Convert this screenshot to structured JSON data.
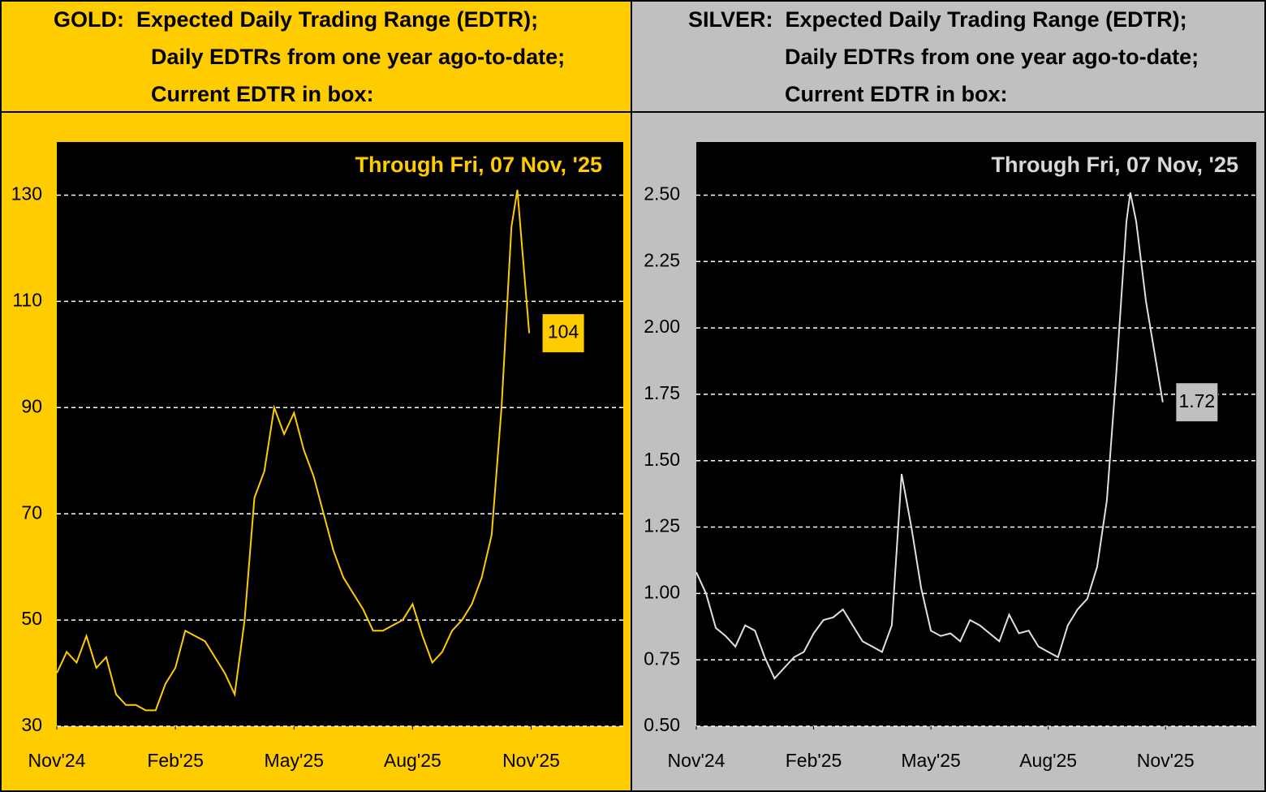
{
  "chart_data": [
    {
      "type": "line",
      "title": [
        "GOLD:  Expected Daily Trading Range (EDTR);",
        "Daily EDTRs from one year ago-to-date;",
        "Current EDTR in box:"
      ],
      "annotation": "Through Fri, 07 Nov, '25",
      "background": "#ffcc00",
      "color": "#ffcc00",
      "annotation_color": "#ffcc00",
      "x": [
        0,
        0.25,
        0.5,
        0.75,
        1,
        1.25,
        1.5,
        1.75,
        2,
        2.25,
        2.5,
        2.75,
        3,
        3.25,
        3.5,
        3.75,
        4,
        4.25,
        4.5,
        4.75,
        5,
        5.25,
        5.5,
        5.75,
        6,
        6.25,
        6.5,
        6.75,
        7,
        7.25,
        7.5,
        7.75,
        8,
        8.25,
        8.5,
        8.75,
        9,
        9.25,
        9.5,
        9.75,
        10,
        10.25,
        10.5,
        10.75,
        11,
        11.25,
        11.5,
        11.65,
        11.95
      ],
      "values": [
        40,
        44,
        42,
        47,
        41,
        43,
        36,
        34,
        34,
        33,
        33,
        38,
        41,
        48,
        47,
        46,
        43,
        40,
        36,
        50,
        73,
        78,
        90,
        85,
        89,
        82,
        77,
        70,
        63,
        58,
        55,
        52,
        48,
        48,
        49,
        50,
        53,
        47,
        42,
        44,
        48,
        50,
        53,
        58,
        66,
        90,
        124,
        131,
        104
      ],
      "xlim": [
        0,
        14.33
      ],
      "xticks": [
        {
          "value": 0,
          "label": "Nov'24"
        },
        {
          "value": 3,
          "label": "Feb'25"
        },
        {
          "value": 6,
          "label": "May'25"
        },
        {
          "value": 9,
          "label": "Aug'25"
        },
        {
          "value": 12,
          "label": "Nov'25"
        }
      ],
      "ylim": [
        30,
        140
      ],
      "yticks": [
        30,
        50,
        70,
        90,
        110,
        130
      ],
      "grid": true
    },
    {
      "type": "line",
      "title": [
        "SILVER:  Expected Daily Trading Range (EDTR);",
        "Daily EDTRs from one year ago-to-date;",
        "Current EDTR in box:"
      ],
      "annotation": "Through Fri, 07 Nov, '25",
      "background": "#c0c0c0",
      "color": "#e0e0e0",
      "annotation_color": "#d8d8d8",
      "x": [
        0,
        0.25,
        0.5,
        0.75,
        1,
        1.25,
        1.5,
        1.75,
        2,
        2.25,
        2.5,
        2.75,
        3,
        3.25,
        3.5,
        3.75,
        4,
        4.25,
        4.5,
        4.75,
        5,
        5.25,
        5.5,
        5.75,
        6,
        6.25,
        6.5,
        6.75,
        7,
        7.25,
        7.5,
        7.75,
        8,
        8.25,
        8.5,
        8.75,
        9,
        9.25,
        9.5,
        9.75,
        10,
        10.25,
        10.5,
        10.75,
        11,
        11.1,
        11.25,
        11.5,
        11.93
      ],
      "values": [
        1.08,
        1.0,
        0.87,
        0.84,
        0.8,
        0.88,
        0.86,
        0.76,
        0.68,
        0.72,
        0.76,
        0.78,
        0.85,
        0.9,
        0.91,
        0.94,
        0.88,
        0.82,
        0.8,
        0.78,
        0.88,
        1.45,
        1.25,
        1.02,
        0.86,
        0.84,
        0.85,
        0.82,
        0.9,
        0.88,
        0.85,
        0.82,
        0.92,
        0.85,
        0.86,
        0.8,
        0.78,
        0.76,
        0.88,
        0.94,
        0.98,
        1.1,
        1.35,
        1.85,
        2.4,
        2.51,
        2.4,
        2.1,
        1.72
      ],
      "xlim": [
        0,
        14.32
      ],
      "xticks": [
        {
          "value": 0,
          "label": "Nov'24"
        },
        {
          "value": 3,
          "label": "Feb'25"
        },
        {
          "value": 6,
          "label": "May'25"
        },
        {
          "value": 9,
          "label": "Aug'25"
        },
        {
          "value": 12,
          "label": "Nov'25"
        }
      ],
      "ylim": [
        0.5,
        2.7
      ],
      "yticks": [
        {
          "value": 0.5,
          "label": "0.50"
        },
        {
          "value": 0.75,
          "label": "0.75"
        },
        {
          "value": 1.0,
          "label": "1.00"
        },
        {
          "value": 1.25,
          "label": "1.25"
        },
        {
          "value": 1.5,
          "label": "1.50"
        },
        {
          "value": 1.75,
          "label": "1.75"
        },
        {
          "value": 2.0,
          "label": "2.00"
        },
        {
          "value": 2.25,
          "label": "2.25"
        },
        {
          "value": 2.5,
          "label": "2.50"
        }
      ],
      "grid": true
    }
  ]
}
